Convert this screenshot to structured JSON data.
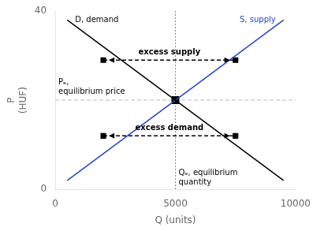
{
  "chart_data": {
    "type": "line",
    "xlabel": "Q (units)",
    "ylabel": "P\n(HUF)",
    "xlim": [
      0,
      10000
    ],
    "ylim": [
      0,
      40
    ],
    "xticks": [
      0,
      5000,
      10000
    ],
    "yticks": [
      0,
      40
    ],
    "grid": false,
    "series": [
      {
        "name": "D, demand",
        "color": "#000000",
        "x": [
          500,
          9500
        ],
        "values": [
          38,
          2
        ]
      },
      {
        "name": "S, supply",
        "color": "#2244cc",
        "x": [
          500,
          9500
        ],
        "values": [
          2,
          38
        ]
      },
      {
        "name": "excess supply",
        "color": "#000000",
        "x": [
          2000,
          7500
        ],
        "values": [
          29,
          29
        ],
        "line_style": "dashed",
        "marker": "square"
      },
      {
        "name": "excess demand",
        "color": "#000000",
        "x": [
          2000,
          7500
        ],
        "values": [
          12,
          12
        ],
        "line_style": "dashed",
        "marker": "square"
      },
      {
        "color": "#000000",
        "x": [
          5000
        ],
        "values": [
          20
        ],
        "marker": "square"
      }
    ],
    "hlines": [
      {
        "y": 20,
        "color": "#bbbbbb",
        "line_style": "dashed",
        "label": "Pₑ,\nequilibrium price"
      }
    ],
    "vlines": [
      {
        "x": 5000,
        "color": "#888888",
        "line_style": "dotted",
        "label": "Qₑ, equilibrium\nquantity"
      }
    ]
  }
}
